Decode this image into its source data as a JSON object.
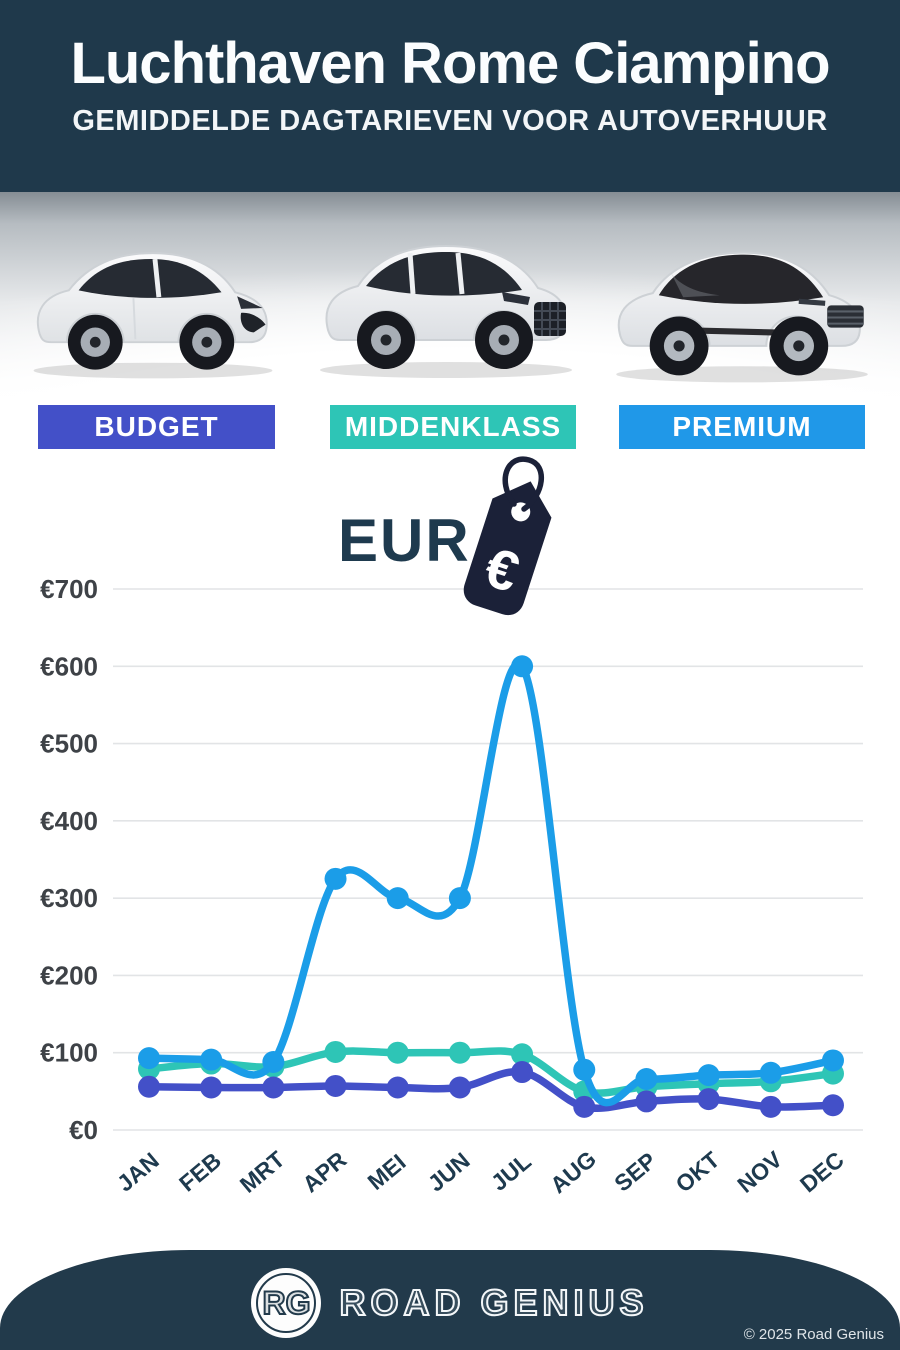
{
  "header": {
    "title": "Luchthaven Rome Ciampino",
    "subtitle": "GEMIDDELDE DAGTARIEVEN VOOR AUTOVERHUUR"
  },
  "car_classes": [
    {
      "label": "BUDGET",
      "color": "#4350c8",
      "car_icon": "hatchback-car-icon"
    },
    {
      "label": "MIDDENKLASS",
      "color": "#2ec5b6",
      "car_icon": "suv-car-icon"
    },
    {
      "label": "PREMIUM",
      "color": "#2098e8",
      "car_icon": "black-roof-suv-car-icon"
    }
  ],
  "chart_heading": {
    "currency_label": "EUR",
    "tag_icon": "euro-price-tag-icon",
    "euro_symbol": "€"
  },
  "chart_data": {
    "type": "line",
    "title": "EUR",
    "categories": [
      "JAN",
      "FEB",
      "MRT",
      "APR",
      "MEI",
      "JUN",
      "JUL",
      "AUG",
      "SEP",
      "OKT",
      "NOV",
      "DEC"
    ],
    "series": [
      {
        "name": "Budget",
        "color": "#4350c8",
        "values": [
          56,
          55,
          55,
          57,
          55,
          55,
          75,
          30,
          37,
          40,
          30,
          32
        ]
      },
      {
        "name": "Middenklass",
        "color": "#2ec5b6",
        "values": [
          79,
          86,
          82,
          101,
          100,
          100,
          98,
          50,
          56,
          60,
          63,
          73
        ]
      },
      {
        "name": "Premium",
        "color": "#1b9de8",
        "values": [
          93,
          91,
          88,
          325,
          300,
          300,
          600,
          78,
          66,
          71,
          74,
          90
        ]
      }
    ],
    "currency_prefix": "€",
    "yticks": [
      0,
      100,
      200,
      300,
      400,
      500,
      600,
      700
    ],
    "ylim": [
      0,
      700
    ],
    "grid": true,
    "legend_position": "none",
    "draw_order": [
      1,
      0,
      2
    ],
    "gridline_color": "#e2e4e6"
  },
  "footer": {
    "logo_initials": "RG",
    "brand": "ROAD GENIUS",
    "copyright": "© 2025 Road Genius"
  }
}
